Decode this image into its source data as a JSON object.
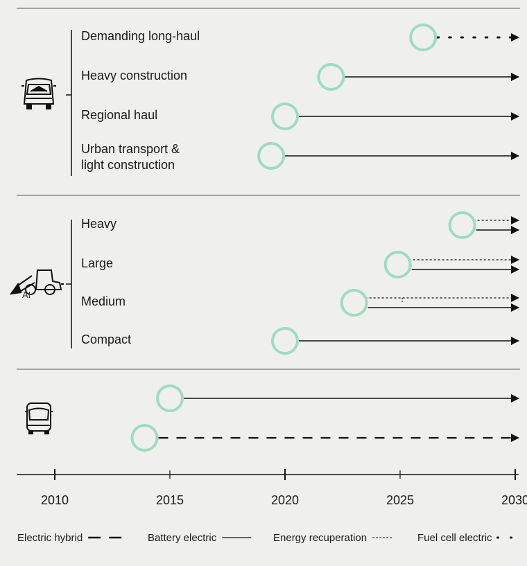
{
  "chart_data": {
    "type": "timeline",
    "x_ticks": [
      2010,
      2015,
      2020,
      2025,
      2030
    ],
    "xlim": [
      2008.4,
      2030
    ],
    "colors": {
      "marker": "#9edcc0",
      "line": "#111111",
      "rule": "#555555"
    },
    "groups": [
      {
        "icon": "truck-icon",
        "rows": [
          {
            "label": [
              "Demanding long-haul"
            ],
            "start": 2026.0,
            "series": [
              "Fuel cell electric"
            ]
          },
          {
            "label": [
              "Heavy construction"
            ],
            "start": 2022.0,
            "series": [
              "Battery electric"
            ]
          },
          {
            "label": [
              "Regional haul"
            ],
            "start": 2020.0,
            "series": [
              "Battery electric"
            ]
          },
          {
            "label": [
              "Urban transport &",
              "light construction"
            ],
            "start": 2019.4,
            "series": [
              "Battery electric"
            ]
          }
        ]
      },
      {
        "icon": "wheel-loader-icon",
        "icon_text": "AI",
        "rows": [
          {
            "label": [
              "Heavy"
            ],
            "start": 2027.7,
            "series": [
              "Energy recuperation",
              "Battery electric"
            ]
          },
          {
            "label": [
              "Large"
            ],
            "start": 2024.9,
            "series": [
              "Energy recuperation",
              "Battery electric"
            ]
          },
          {
            "label": [
              "Medium"
            ],
            "start": 2023.0,
            "series": [
              "Energy recuperation",
              "Battery electric"
            ]
          },
          {
            "label": [
              "Compact"
            ],
            "start": 2020.0,
            "series": [
              "Battery electric"
            ]
          }
        ]
      },
      {
        "icon": "bus-icon",
        "rows": [
          {
            "label": [],
            "start": 2015.0,
            "series": [
              "Battery electric"
            ]
          },
          {
            "label": [],
            "start": 2013.9,
            "series": [
              "Electric hybrid"
            ]
          }
        ]
      }
    ],
    "legend": [
      {
        "name": "Electric hybrid",
        "style": "dash"
      },
      {
        "name": "Battery electric",
        "style": "solid"
      },
      {
        "name": "Energy recuperation",
        "style": "short-dash"
      },
      {
        "name": "Fuel cell electric",
        "style": "dot"
      }
    ]
  }
}
